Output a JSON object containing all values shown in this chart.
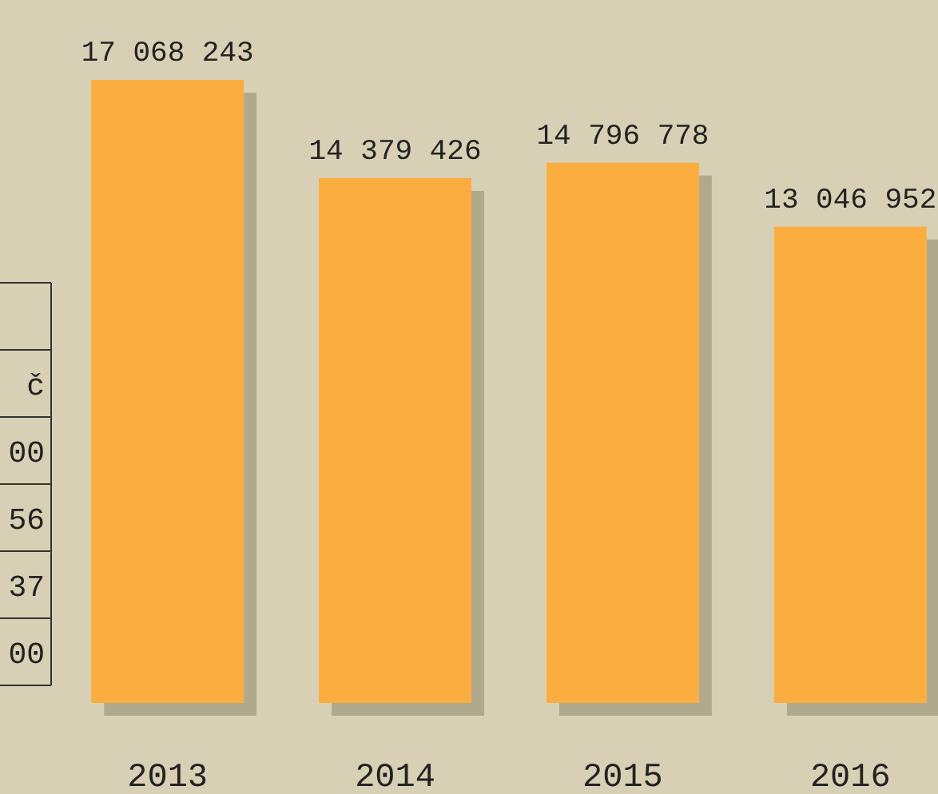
{
  "chart_data": {
    "type": "bar",
    "categories": [
      "2013",
      "2014",
      "2015",
      "2016"
    ],
    "values": [
      17068243,
      14379426,
      14796778,
      13046952
    ],
    "value_labels": [
      "17 068 243",
      "14 379 426",
      "14 796 778",
      "13 046 952"
    ],
    "color": "#fbad3f",
    "tick_labels": "x",
    "annotations": [
      "č",
      "00",
      "56",
      "37",
      "00"
    ]
  }
}
